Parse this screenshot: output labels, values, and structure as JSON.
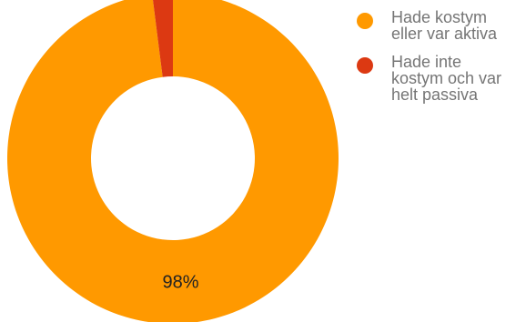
{
  "chart_data": {
    "type": "pie",
    "donut": true,
    "title": "",
    "categories": [
      "Hade kostym\neller var aktiva",
      "Hade inte\nkostym och var\nhelt passiva"
    ],
    "values": [
      98,
      2
    ],
    "colors": [
      "#FF9900",
      "#DC3912"
    ],
    "data_labels": [
      "98%",
      ""
    ],
    "legend_position": "right"
  }
}
